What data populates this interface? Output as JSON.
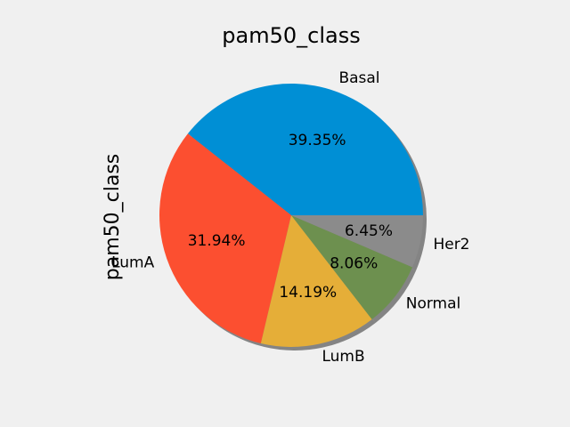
{
  "chart_data": {
    "type": "pie",
    "title": "pam50_class",
    "ylabel": "pam50_class",
    "shadow": true,
    "start_angle_deg": 0,
    "direction": "counterclockwise",
    "slices": [
      {
        "label": "Basal",
        "value": 39.35,
        "pct_label": "39.35%",
        "color": "#008fd5"
      },
      {
        "label": "LumA",
        "value": 31.94,
        "pct_label": "31.94%",
        "color": "#fc4f30"
      },
      {
        "label": "LumB",
        "value": 14.19,
        "pct_label": "14.19%",
        "color": "#e5ae38"
      },
      {
        "label": "Normal",
        "value": 8.06,
        "pct_label": "8.06%",
        "color": "#6d904f"
      },
      {
        "label": "Her2",
        "value": 6.45,
        "pct_label": "6.45%",
        "color": "#8b8b8b"
      }
    ]
  }
}
